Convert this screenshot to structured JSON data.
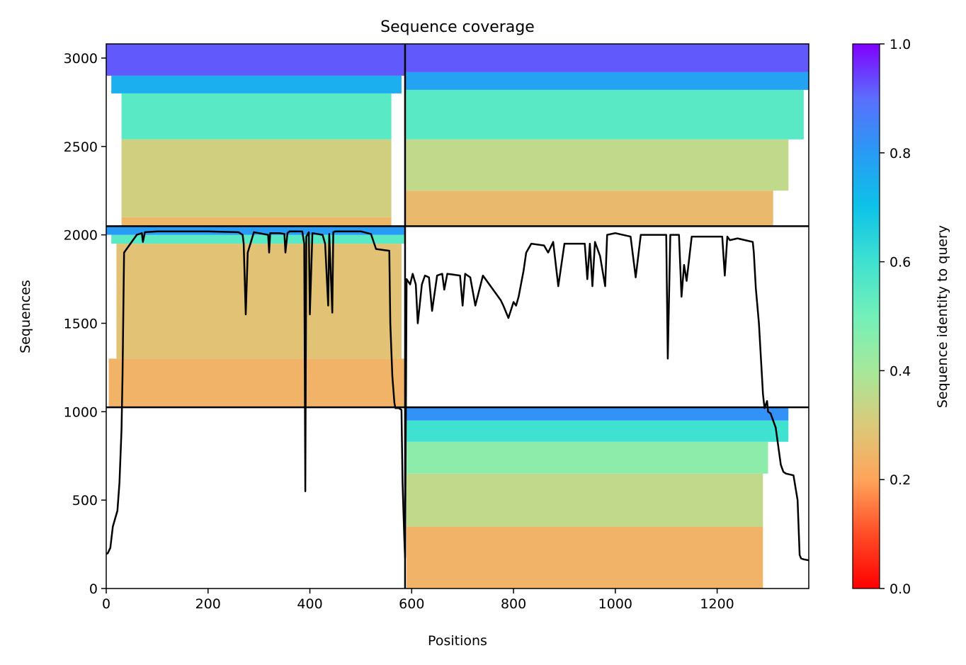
{
  "chart_data": {
    "type": "heatmap",
    "title": "Sequence coverage",
    "xlabel": "Positions",
    "ylabel": "Sequences",
    "xlim": [
      0,
      1380
    ],
    "ylim": [
      0,
      3080
    ],
    "xticks": [
      0,
      200,
      400,
      600,
      800,
      1000,
      1200
    ],
    "yticks": [
      0,
      500,
      1000,
      1500,
      2000,
      2500,
      3000
    ],
    "grid": false,
    "colorbar": {
      "label": "Sequence identity to query",
      "colormap": "rainbow_r",
      "range": [
        0,
        1
      ],
      "ticks": [
        0.0,
        0.2,
        0.4,
        0.6,
        0.8,
        1.0
      ],
      "tick_labels": [
        "0.0",
        "0.2",
        "0.4",
        "0.6",
        "0.8",
        "1.0"
      ]
    },
    "chain_breaks": {
      "x": [
        587
      ],
      "y": [
        1025,
        2049
      ]
    },
    "blocks": [
      {
        "name": "chain A top",
        "x": [
          0,
          587
        ],
        "y": [
          2049,
          3080
        ],
        "bands": [
          {
            "y": [
              2049,
              2100
            ],
            "identity": 0.25,
            "x": [
              30,
              560
            ]
          },
          {
            "y": [
              2100,
              2540
            ],
            "identity": 0.32,
            "x": [
              30,
              560
            ]
          },
          {
            "y": [
              2540,
              2800
            ],
            "identity": 0.55,
            "x": [
              30,
              560
            ]
          },
          {
            "y": [
              2800,
              2900
            ],
            "identity": 0.75,
            "x": [
              10,
              580
            ]
          },
          {
            "y": [
              2900,
              3080
            ],
            "identity": 0.92,
            "x": [
              0,
              587
            ]
          }
        ]
      },
      {
        "name": "chain B top",
        "x": [
          587,
          1380
        ],
        "y": [
          2049,
          3080
        ],
        "bands": [
          {
            "y": [
              2049,
              2250
            ],
            "identity": 0.26,
            "x": [
              587,
              1310
            ]
          },
          {
            "y": [
              2250,
              2540
            ],
            "identity": 0.35,
            "x": [
              587,
              1340
            ]
          },
          {
            "y": [
              2540,
              2820
            ],
            "identity": 0.55,
            "x": [
              587,
              1370
            ]
          },
          {
            "y": [
              2820,
              2920
            ],
            "identity": 0.78,
            "x": [
              587,
              1380
            ]
          },
          {
            "y": [
              2920,
              3080
            ],
            "identity": 0.92,
            "x": [
              587,
              1380
            ]
          }
        ]
      },
      {
        "name": "chain A middle",
        "x": [
          0,
          587
        ],
        "y": [
          1025,
          2049
        ],
        "bands": [
          {
            "y": [
              1025,
              1300
            ],
            "identity": 0.24,
            "x": [
              5,
              587
            ]
          },
          {
            "y": [
              1300,
              1950
            ],
            "identity": 0.28,
            "x": [
              20,
              580
            ]
          },
          {
            "y": [
              1950,
              2000
            ],
            "identity": 0.55,
            "x": [
              10,
              587
            ]
          },
          {
            "y": [
              2000,
              2049
            ],
            "identity": 0.8,
            "x": [
              0,
              587
            ]
          }
        ]
      },
      {
        "name": "chain B bottom",
        "x": [
          587,
          1380
        ],
        "y": [
          0,
          1025
        ],
        "bands": [
          {
            "y": [
              0,
              350
            ],
            "identity": 0.24,
            "x": [
              590,
              1290
            ]
          },
          {
            "y": [
              350,
              650
            ],
            "identity": 0.35,
            "x": [
              590,
              1290
            ]
          },
          {
            "y": [
              650,
              830
            ],
            "identity": 0.45,
            "x": [
              590,
              1300
            ]
          },
          {
            "y": [
              830,
              950
            ],
            "identity": 0.6,
            "x": [
              590,
              1340
            ]
          },
          {
            "y": [
              950,
              1025
            ],
            "identity": 0.82,
            "x": [
              590,
              1340
            ]
          }
        ]
      }
    ],
    "coverage_line": {
      "color": "#000000",
      "x": [
        0,
        3,
        8,
        13,
        18,
        22,
        26,
        30,
        32,
        35,
        60,
        70,
        72,
        76,
        100,
        200,
        260,
        268,
        270,
        274,
        278,
        290,
        300,
        318,
        320,
        322,
        340,
        350,
        352,
        356,
        360,
        385,
        389,
        391,
        393,
        398,
        400,
        405,
        425,
        430,
        436,
        438,
        444,
        446,
        450,
        500,
        520,
        530,
        556,
        558,
        562,
        566,
        568,
        575,
        580,
        582,
        584,
        586,
        587,
        590,
        597,
        602,
        608,
        612,
        620,
        626,
        634,
        640,
        650,
        660,
        664,
        670,
        695,
        700,
        705,
        715,
        725,
        740,
        760,
        775,
        780,
        790,
        800,
        805,
        810,
        820,
        825,
        835,
        860,
        868,
        878,
        888,
        900,
        908,
        940,
        945,
        950,
        955,
        960,
        970,
        980,
        984,
        1000,
        1030,
        1040,
        1050,
        1100,
        1103,
        1108,
        1125,
        1130,
        1135,
        1140,
        1150,
        1210,
        1215,
        1220,
        1225,
        1240,
        1270,
        1272,
        1276,
        1282,
        1288,
        1290,
        1293,
        1298,
        1300,
        1305,
        1315,
        1325,
        1330,
        1335,
        1350,
        1358,
        1362,
        1365,
        1370,
        1380
      ],
      "y": [
        195,
        200,
        230,
        350,
        400,
        440,
        600,
        900,
        1200,
        1900,
        2000,
        2010,
        1960,
        2015,
        2020,
        2020,
        2015,
        2000,
        1950,
        1550,
        1900,
        2015,
        2010,
        2000,
        1900,
        2010,
        2010,
        2005,
        1900,
        2010,
        2020,
        2020,
        1950,
        550,
        1990,
        2015,
        1550,
        2010,
        2000,
        1950,
        1600,
        2005,
        1560,
        2015,
        2020,
        2020,
        2005,
        1920,
        1910,
        1500,
        1200,
        1050,
        1020,
        1020,
        1010,
        600,
        420,
        250,
        175,
        1750,
        1720,
        1780,
        1720,
        1500,
        1720,
        1770,
        1760,
        1570,
        1770,
        1780,
        1690,
        1780,
        1770,
        1600,
        1780,
        1760,
        1600,
        1770,
        1690,
        1630,
        1600,
        1530,
        1620,
        1600,
        1650,
        1800,
        1900,
        1950,
        1940,
        1900,
        1960,
        1710,
        1950,
        1950,
        1950,
        1750,
        1950,
        1710,
        1960,
        1880,
        1710,
        2000,
        2010,
        1990,
        1760,
        2000,
        2000,
        1300,
        2000,
        2000,
        1650,
        1830,
        1740,
        1990,
        1990,
        1770,
        1990,
        1970,
        1980,
        1960,
        1900,
        1700,
        1500,
        1200,
        1100,
        1020,
        1060,
        1000,
        990,
        910,
        700,
        660,
        650,
        640,
        500,
        190,
        170,
        165,
        160
      ]
    }
  }
}
